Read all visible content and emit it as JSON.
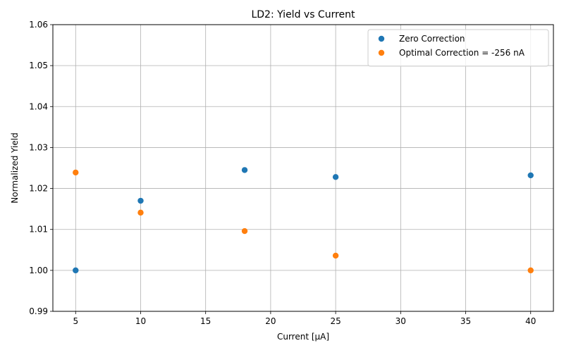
{
  "chart_data": {
    "type": "scatter",
    "title": "LD2: Yield vs Current",
    "xlabel": "Current [µA]",
    "ylabel": "Normalized Yield",
    "xlim": [
      3.25,
      41.75
    ],
    "ylim": [
      0.99,
      1.06
    ],
    "x_ticks": [
      5,
      10,
      15,
      20,
      25,
      30,
      35,
      40
    ],
    "x_tick_labels": [
      "5",
      "10",
      "15",
      "20",
      "25",
      "30",
      "35",
      "40"
    ],
    "y_ticks": [
      0.99,
      1.0,
      1.01,
      1.02,
      1.03,
      1.04,
      1.05,
      1.06
    ],
    "y_tick_labels": [
      "0.99",
      "1.00",
      "1.01",
      "1.02",
      "1.03",
      "1.04",
      "1.05",
      "1.06"
    ],
    "grid": true,
    "legend_position": "top-right",
    "series": [
      {
        "name": "Zero Correction",
        "color": "#1f77b4",
        "x": [
          5,
          10,
          18,
          25,
          40
        ],
        "y": [
          1.0,
          1.017,
          1.0245,
          1.0228,
          1.0232
        ]
      },
      {
        "name": "Optimal Correction = -256 nA",
        "color": "#ff7f0e",
        "x": [
          5,
          10,
          18,
          25,
          40
        ],
        "y": [
          1.0239,
          1.0141,
          1.0096,
          1.0036,
          1.0
        ]
      }
    ]
  }
}
